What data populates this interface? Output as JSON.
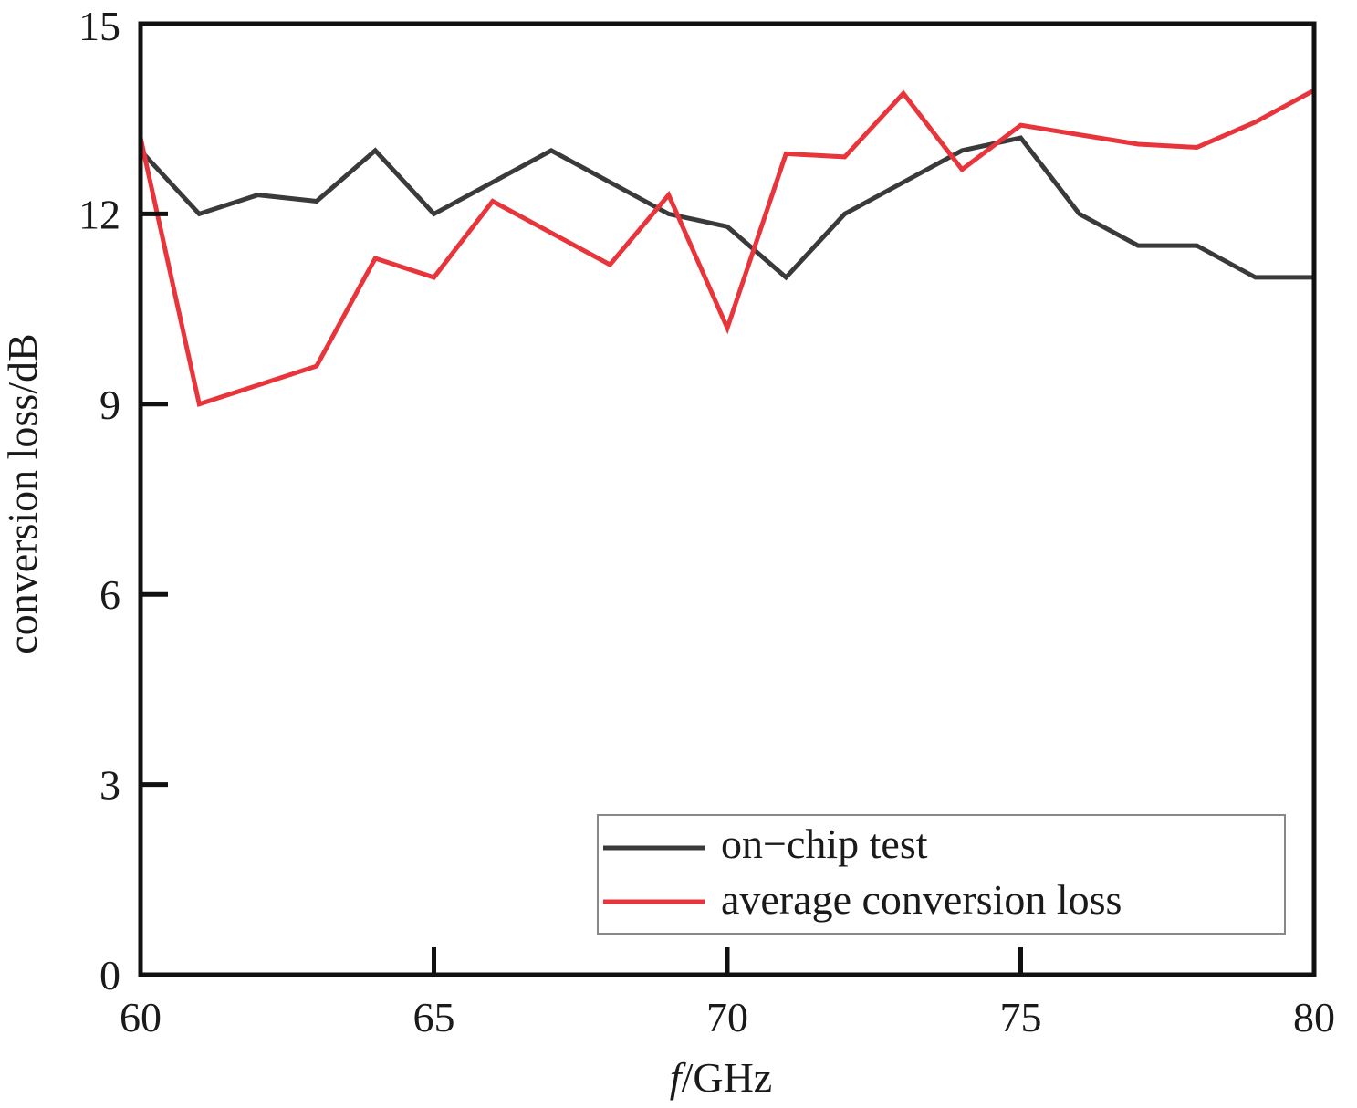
{
  "chart_data": {
    "type": "line",
    "xlabel": {
      "italic": "f",
      "rest": "/GHz"
    },
    "ylabel": "conversion loss/dB",
    "xlim": [
      60,
      80
    ],
    "ylim": [
      0,
      15
    ],
    "xticks": [
      60,
      65,
      70,
      75,
      80
    ],
    "yticks": [
      0,
      3,
      6,
      9,
      12,
      15
    ],
    "grid": false,
    "legend_position": "bottom-right",
    "series": [
      {
        "name": "on−chip test",
        "color": "#3a3a3a",
        "x": [
          60,
          61,
          62,
          63,
          64,
          65,
          66,
          67,
          68,
          69,
          70,
          71,
          72,
          73,
          74,
          75,
          76,
          77,
          78,
          79,
          80
        ],
        "y": [
          13.0,
          12.0,
          12.3,
          12.2,
          13.0,
          12.0,
          12.5,
          13.0,
          12.5,
          12.0,
          11.8,
          11.0,
          12.0,
          12.5,
          13.0,
          13.2,
          12.0,
          11.5,
          11.5,
          11.0,
          11.0
        ]
      },
      {
        "name": "average conversion loss",
        "color": "#e8343b",
        "x": [
          60,
          61,
          62,
          63,
          64,
          65,
          66,
          67,
          68,
          69,
          70,
          71,
          72,
          73,
          74,
          75,
          76,
          77,
          78,
          79,
          80
        ],
        "y": [
          13.2,
          9.0,
          9.3,
          9.6,
          11.3,
          11.0,
          12.2,
          11.7,
          11.2,
          12.3,
          10.2,
          12.95,
          12.9,
          13.9,
          12.7,
          13.4,
          13.25,
          13.1,
          13.05,
          13.45,
          13.95
        ]
      }
    ]
  }
}
